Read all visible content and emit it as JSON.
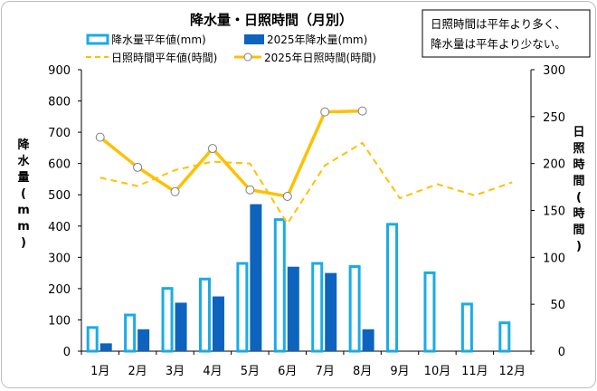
{
  "chart_data": {
    "type": "bar",
    "title": "降水量・日照時間（月別）",
    "annotation": [
      "日照時間は平年より多く、",
      "降水量は平年より少ない。"
    ],
    "categories": [
      "1月",
      "2月",
      "3月",
      "4月",
      "5月",
      "6月",
      "7月",
      "8月",
      "9月",
      "10月",
      "11月",
      "12月"
    ],
    "left_axis": {
      "label": "降水量（mm）",
      "label_chars": [
        "降",
        "水",
        "量",
        "(",
        "m",
        "m",
        ")"
      ],
      "ylim": [
        0,
        900
      ],
      "ticks": [
        0,
        100,
        200,
        300,
        400,
        500,
        600,
        700,
        800,
        900
      ]
    },
    "right_axis": {
      "label": "日照時間（時間）",
      "label_chars": [
        "日",
        "照",
        "時",
        "間",
        "(",
        "時",
        "間",
        ")"
      ],
      "ylim": [
        0,
        300
      ],
      "ticks": [
        0,
        50,
        100,
        150,
        200,
        250,
        300
      ]
    },
    "grid": false,
    "legend_position": "top",
    "series": [
      {
        "name": "降水量平年値(mm)",
        "kind": "bar-outline",
        "axis": "left",
        "color": "#18ace6",
        "values": [
          80,
          120,
          205,
          235,
          285,
          425,
          285,
          275,
          410,
          255,
          155,
          95
        ]
      },
      {
        "name": "2025年降水量(mm)",
        "kind": "bar",
        "axis": "left",
        "color": "#0d63be",
        "values": [
          25,
          70,
          155,
          175,
          470,
          270,
          250,
          70,
          null,
          null,
          null,
          null
        ]
      },
      {
        "name": "日照時間平年値(時間)",
        "kind": "line-dashed",
        "axis": "right",
        "color": "#ffc000",
        "values": [
          185,
          176,
          193,
          202,
          200,
          136,
          198,
          222,
          163,
          178,
          166,
          180
        ]
      },
      {
        "name": "2025年日照時間(時間)",
        "kind": "line-marker",
        "axis": "right",
        "color": "#ffc000",
        "values": [
          228,
          196,
          170,
          216,
          172,
          165,
          255,
          256,
          null,
          null,
          null,
          null
        ]
      }
    ]
  }
}
